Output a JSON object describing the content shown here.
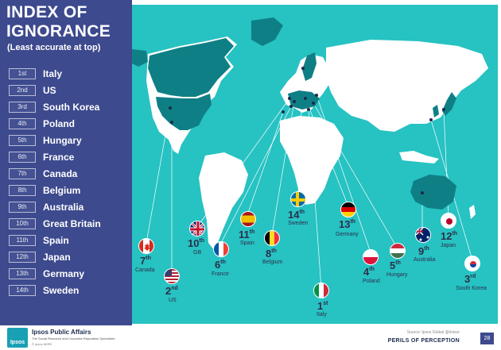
{
  "panel": {
    "title": "INDEX OF IGNORANCE",
    "subtitle": "(Least accurate at top)",
    "ranking": [
      {
        "rank": "1st",
        "country": "Italy"
      },
      {
        "rank": "2nd",
        "country": "US"
      },
      {
        "rank": "3rd",
        "country": "South Korea"
      },
      {
        "rank": "4th",
        "country": "Poland"
      },
      {
        "rank": "5th",
        "country": "Hungary"
      },
      {
        "rank": "6th",
        "country": "France"
      },
      {
        "rank": "7th",
        "country": "Canada"
      },
      {
        "rank": "8th",
        "country": "Belgium"
      },
      {
        "rank": "9th",
        "country": "Australia"
      },
      {
        "rank": "10th",
        "country": "Great Britain"
      },
      {
        "rank": "11th",
        "country": "Spain"
      },
      {
        "rank": "12th",
        "country": "Japan"
      },
      {
        "rank": "13th",
        "country": "Germany"
      },
      {
        "rank": "14th",
        "country": "Sweden"
      }
    ]
  },
  "markers": [
    {
      "id": "canada",
      "num": "7",
      "suf": "th",
      "name": "Canada"
    },
    {
      "id": "us",
      "num": "2",
      "suf": "nd",
      "name": "US"
    },
    {
      "id": "gb",
      "num": "10",
      "suf": "th",
      "name": "GB"
    },
    {
      "id": "france",
      "num": "6",
      "suf": "th",
      "name": "France"
    },
    {
      "id": "spain",
      "num": "11",
      "suf": "th",
      "name": "Spain"
    },
    {
      "id": "belgium",
      "num": "8",
      "suf": "th",
      "name": "Belgium"
    },
    {
      "id": "sweden",
      "num": "14",
      "suf": "th",
      "name": "Sweden"
    },
    {
      "id": "italy",
      "num": "1",
      "suf": "st",
      "name": "Italy"
    },
    {
      "id": "germany",
      "num": "13",
      "suf": "th",
      "name": "Germany"
    },
    {
      "id": "poland",
      "num": "4",
      "suf": "th",
      "name": "Poland"
    },
    {
      "id": "hungary",
      "num": "5",
      "suf": "th",
      "name": "Hungary"
    },
    {
      "id": "australia",
      "num": "9",
      "suf": "th",
      "name": "Australia"
    },
    {
      "id": "japan",
      "num": "12",
      "suf": "th",
      "name": "Japan"
    },
    {
      "id": "southkorea",
      "num": "3",
      "suf": "rd",
      "name": "South Korea"
    }
  ],
  "footer": {
    "brand": "Ipsos Public Affairs",
    "tagline": "The Social Research and Corporate Reputation Specialists",
    "copyright": "© Ipsos MORI",
    "logo_text": "Ipsos",
    "source": "Source: Ipsos Global @dvisor",
    "title": "PERILS OF PERCEPTION",
    "page": "28"
  },
  "colors": {
    "panel_bg": "#3d4a8e",
    "map_bg": "#27c2c2",
    "land": "#ffffff",
    "highlight_land": "#0f7f86"
  }
}
